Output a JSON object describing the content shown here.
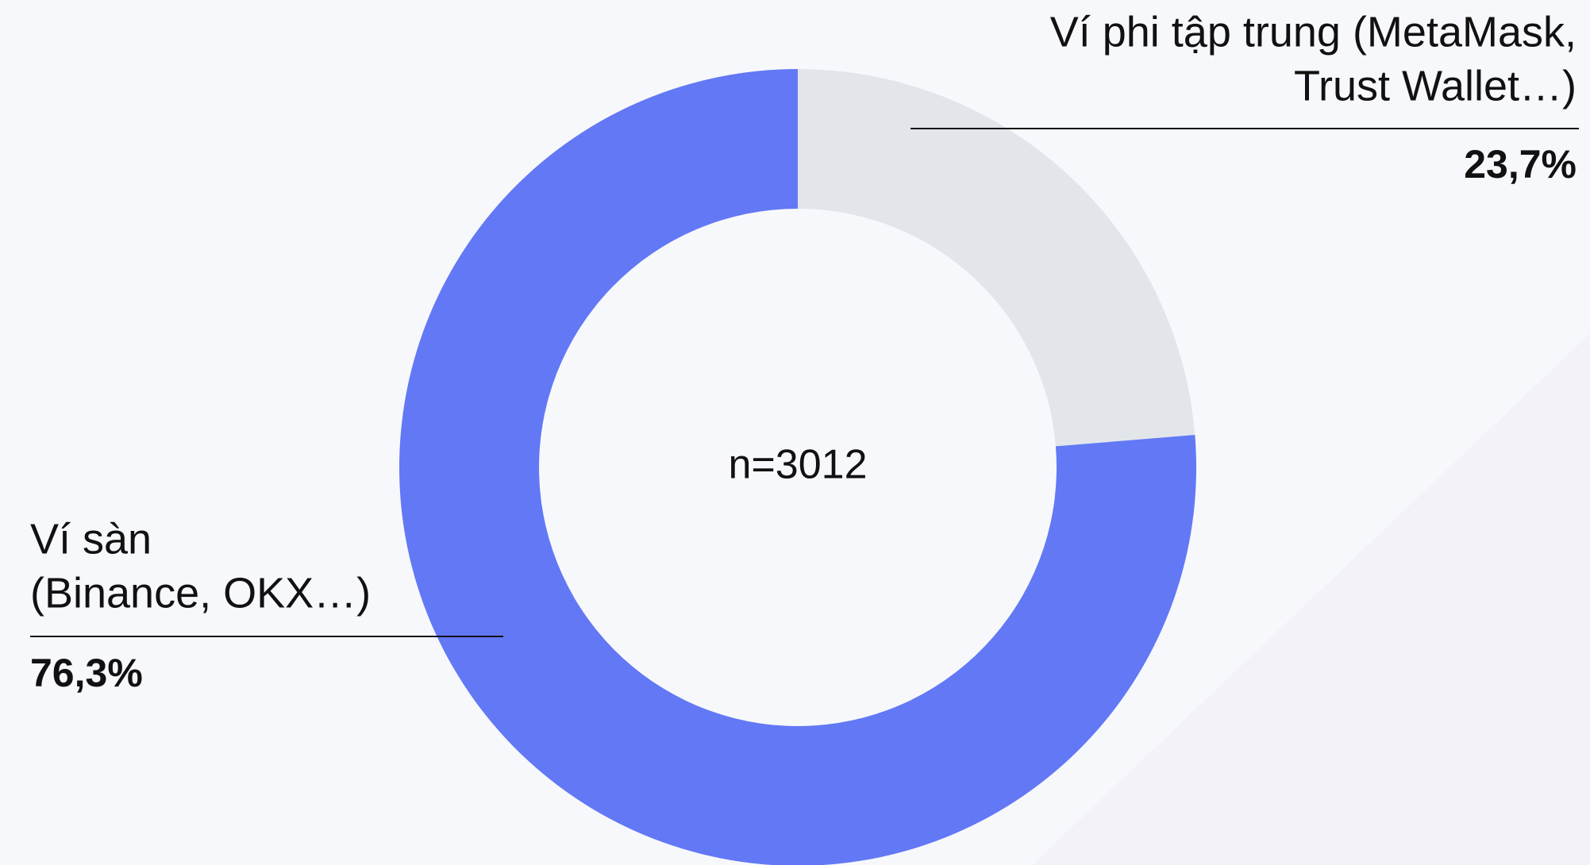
{
  "chart_data": {
    "type": "donut",
    "annotation": "n=3012",
    "categories": [
      [
        "Ví phi tập trung (MetaMask,",
        "Trust Wallet…)"
      ],
      [
        "Ví sàn",
        "(Binance, OKX…)"
      ]
    ],
    "values": [
      23.7,
      76.3
    ],
    "value_labels": [
      "23,7%",
      "76,3%"
    ],
    "colors": [
      "#e2e6ea",
      "#6278f5"
    ]
  }
}
